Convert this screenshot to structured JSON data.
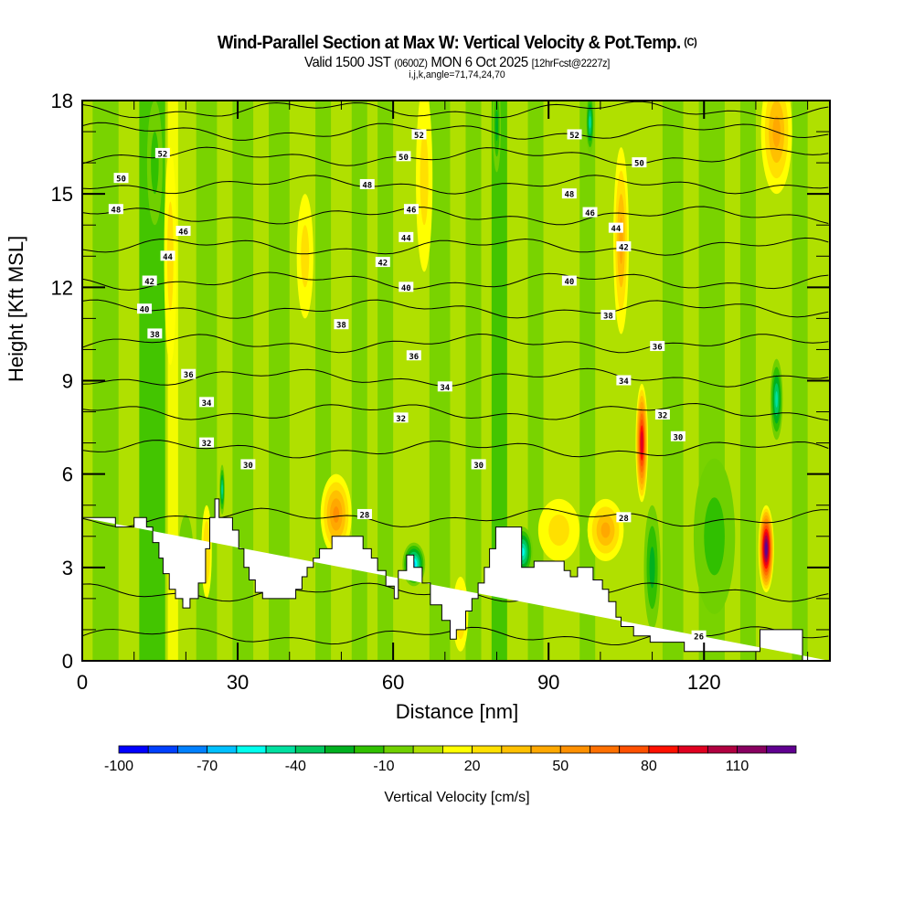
{
  "header": {
    "title": "Wind-Parallel Section at Max W: Vertical Velocity & Pot.Temp.",
    "copyright": "(C)",
    "valid_prefix": "Valid 1500 JST",
    "valid_utc": "(0600Z)",
    "valid_date": "MON 6 Oct 2025",
    "forecast": "[12hrFcst@2227z]",
    "indices": "i,j,k,angle=71,74,24,70"
  },
  "chart_data": {
    "type": "heatmap",
    "title": "Wind-Parallel Section at Max W: Vertical Velocity & Pot.Temp.",
    "xlabel": "Distance [nm]",
    "ylabel": "Height [Kft MSL]",
    "xlim": [
      0,
      144.3
    ],
    "ylim": [
      0,
      18
    ],
    "xticks": [
      0,
      30,
      60,
      90,
      120
    ],
    "xtick_labels": [
      "0",
      "30",
      "60",
      "90",
      "120"
    ],
    "yticks": [
      0,
      3,
      6,
      9,
      12,
      15,
      18
    ],
    "ytick_labels": [
      "0",
      "3",
      "6",
      "9",
      "12",
      "15",
      "18"
    ],
    "colorbar": {
      "label": "Vertical Velocity [cm/s]",
      "tick_labels": [
        "-100",
        "-70",
        "-40",
        "-10",
        "20",
        "50",
        "80",
        "110"
      ],
      "tick_values": [
        -100,
        -70,
        -40,
        -10,
        20,
        50,
        80,
        110
      ],
      "min": -100,
      "step": 10,
      "colors": [
        "#0000ff",
        "#0040ff",
        "#0080ff",
        "#00c0ff",
        "#00ffee",
        "#00e0a0",
        "#00c860",
        "#00b020",
        "#30c000",
        "#70d000",
        "#b0e000",
        "#ffff00",
        "#ffe000",
        "#ffc000",
        "#ffa800",
        "#ff9000",
        "#ff7000",
        "#ff5000",
        "#ff1000",
        "#e00020",
        "#b00040",
        "#880060",
        "#600090"
      ]
    },
    "theta_contours": {
      "units": "K (pot. temp., labels shown)",
      "levels": [
        26,
        28,
        30,
        32,
        34,
        36,
        38,
        40,
        42,
        44,
        46,
        48,
        50,
        52
      ],
      "labels": [
        {
          "text": "52",
          "x": 15.5,
          "y": 16.3
        },
        {
          "text": "50",
          "x": 7.5,
          "y": 15.5
        },
        {
          "text": "48",
          "x": 6.5,
          "y": 14.5
        },
        {
          "text": "46",
          "x": 19.5,
          "y": 13.8
        },
        {
          "text": "44",
          "x": 16.5,
          "y": 13.0
        },
        {
          "text": "42",
          "x": 13,
          "y": 12.2
        },
        {
          "text": "40",
          "x": 12,
          "y": 11.3
        },
        {
          "text": "38",
          "x": 14,
          "y": 10.5
        },
        {
          "text": "36",
          "x": 20.5,
          "y": 9.2
        },
        {
          "text": "34",
          "x": 24,
          "y": 8.3
        },
        {
          "text": "32",
          "x": 24,
          "y": 7.0
        },
        {
          "text": "30",
          "x": 32,
          "y": 6.3
        },
        {
          "text": "52",
          "x": 65,
          "y": 16.9
        },
        {
          "text": "50",
          "x": 62,
          "y": 16.2
        },
        {
          "text": "48",
          "x": 55,
          "y": 15.3
        },
        {
          "text": "46",
          "x": 63.5,
          "y": 14.5
        },
        {
          "text": "44",
          "x": 62.5,
          "y": 13.6
        },
        {
          "text": "42",
          "x": 58,
          "y": 12.8
        },
        {
          "text": "40",
          "x": 62.5,
          "y": 12.0
        },
        {
          "text": "38",
          "x": 50,
          "y": 10.8
        },
        {
          "text": "36",
          "x": 64,
          "y": 9.8
        },
        {
          "text": "34",
          "x": 70,
          "y": 8.8
        },
        {
          "text": "32",
          "x": 61.5,
          "y": 7.8
        },
        {
          "text": "30",
          "x": 76.5,
          "y": 6.3
        },
        {
          "text": "28",
          "x": 54.5,
          "y": 4.7
        },
        {
          "text": "52",
          "x": 95,
          "y": 16.9
        },
        {
          "text": "50",
          "x": 107.5,
          "y": 16.0
        },
        {
          "text": "48",
          "x": 94,
          "y": 15.0
        },
        {
          "text": "46",
          "x": 98,
          "y": 14.4
        },
        {
          "text": "44",
          "x": 103,
          "y": 13.9
        },
        {
          "text": "42",
          "x": 104.5,
          "y": 13.3
        },
        {
          "text": "40",
          "x": 94,
          "y": 12.2
        },
        {
          "text": "38",
          "x": 101.5,
          "y": 11.1
        },
        {
          "text": "36",
          "x": 111,
          "y": 10.1
        },
        {
          "text": "34",
          "x": 104.5,
          "y": 9.0
        },
        {
          "text": "32",
          "x": 112,
          "y": 7.9
        },
        {
          "text": "30",
          "x": 115,
          "y": 7.2
        },
        {
          "text": "28",
          "x": 104.5,
          "y": 4.6
        },
        {
          "text": "26",
          "x": 119,
          "y": 0.8
        }
      ]
    },
    "terrain": {
      "x": [
        0,
        6.4,
        6.4,
        10,
        10,
        12.4,
        12.4,
        13.6,
        13.6,
        14.8,
        14.8,
        15.6,
        15.6,
        16.8,
        16.8,
        18,
        18,
        19.4,
        19.4,
        20.8,
        20.8,
        22.4,
        22.4,
        23.8,
        23.8,
        24.6,
        24.6,
        25.6,
        25.6,
        26.4,
        26.4,
        29,
        29,
        30.2,
        30.2,
        31.2,
        31.2,
        32.2,
        32.2,
        33.4,
        33.4,
        34.8,
        34.8,
        41.2,
        41.2,
        42.4,
        42.4,
        43.4,
        43.4,
        44.6,
        44.6,
        45.8,
        45.8,
        47,
        47,
        48.2,
        48.2,
        54.2,
        54.2,
        55.8,
        55.8,
        57,
        57,
        58.6,
        58.6,
        60.2,
        60.2,
        61,
        61,
        62.6,
        62.6,
        64,
        64,
        65.6,
        65.6,
        67.2,
        67.2,
        69.4,
        69.4,
        71,
        71,
        72.2,
        72.2,
        74,
        74,
        75.2,
        75.2,
        76.4,
        76.4,
        77.6,
        77.6,
        78.6,
        78.6,
        79.8,
        79.8,
        81,
        81,
        84.8,
        84.8,
        87.2,
        87.2,
        93,
        93,
        94.2,
        94.2,
        95.6,
        95.6,
        98.6,
        98.6,
        100.4,
        100.4,
        101.6,
        101.6,
        103,
        103,
        104,
        104,
        106.4,
        106.4,
        109.6,
        109.6,
        116.2,
        116.2,
        121.6,
        121.6,
        130.8,
        130.8,
        134,
        134,
        139,
        139,
        144.3,
        144.3,
        0
      ],
      "y": [
        4.6,
        4.6,
        4.3,
        4.3,
        4.6,
        4.6,
        4.3,
        4.3,
        3.8,
        3.8,
        3.3,
        3.3,
        2.8,
        2.8,
        2.3,
        2.3,
        2.0,
        2.0,
        1.7,
        1.7,
        2.0,
        2.0,
        2.5,
        2.5,
        3.6,
        3.6,
        4.6,
        4.6,
        5.2,
        5.2,
        4.6,
        4.6,
        4.2,
        4.2,
        3.6,
        3.6,
        3.0,
        3.0,
        2.6,
        2.6,
        2.2,
        2.2,
        2.0,
        2.0,
        2.3,
        2.3,
        2.7,
        2.7,
        3.0,
        3.0,
        3.3,
        3.3,
        3.6,
        3.6,
        3.6,
        3.6,
        4.0,
        4.0,
        3.6,
        3.6,
        3.3,
        3.3,
        2.9,
        2.9,
        2.4,
        2.4,
        2.0,
        2.0,
        2.9,
        2.9,
        3.4,
        3.4,
        3.0,
        3.0,
        2.5,
        2.5,
        1.8,
        1.8,
        1.3,
        1.3,
        0.7,
        0.7,
        1.0,
        1.0,
        1.6,
        1.6,
        2.0,
        2.0,
        2.5,
        2.5,
        3.0,
        3.0,
        3.6,
        3.6,
        4.3,
        4.3,
        4.3,
        4.3,
        3.0,
        3.0,
        3.2,
        3.2,
        2.9,
        2.9,
        2.7,
        2.7,
        3.0,
        3.0,
        2.6,
        2.6,
        2.3,
        2.3,
        1.9,
        1.9,
        1.4,
        1.4,
        1.1,
        1.1,
        0.8,
        0.8,
        0.6,
        0.6,
        0.3,
        0.3,
        0.3,
        0.3,
        1.0,
        1.0,
        1.0,
        1.0,
        0,
        0
      ]
    },
    "w_features": [
      {
        "x": 108,
        "y": 7.0,
        "sx": 1.2,
        "sy": 1.9,
        "w": 95
      },
      {
        "x": 132,
        "y": 3.6,
        "sx": 1.5,
        "sy": 1.4,
        "w": 125
      },
      {
        "x": 49,
        "y": 4.7,
        "sx": 3.0,
        "sy": 1.3,
        "w": 50
      },
      {
        "x": 101,
        "y": 4.2,
        "sx": 3.5,
        "sy": 1.0,
        "w": 40
      },
      {
        "x": 134,
        "y": 17.0,
        "sx": 3.0,
        "sy": 2.0,
        "w": 40
      },
      {
        "x": 104,
        "y": 13.5,
        "sx": 1.5,
        "sy": 3.0,
        "w": 40
      },
      {
        "x": 17,
        "y": 13.0,
        "sx": 1.2,
        "sy": 3.5,
        "w": 20
      },
      {
        "x": 43,
        "y": 13.0,
        "sx": 1.6,
        "sy": 2.0,
        "w": 20
      },
      {
        "x": 66,
        "y": 15.5,
        "sx": 1.6,
        "sy": 3.0,
        "w": 20
      },
      {
        "x": 73,
        "y": 1.5,
        "sx": 1.5,
        "sy": 1.2,
        "w": 30
      },
      {
        "x": 92,
        "y": 4.2,
        "sx": 4.0,
        "sy": 1.0,
        "w": 20
      },
      {
        "x": 24,
        "y": 3.5,
        "sx": 1.0,
        "sy": 1.5,
        "w": 25
      },
      {
        "x": 64,
        "y": 3.1,
        "sx": 2.2,
        "sy": 0.7,
        "w": -70
      },
      {
        "x": 85,
        "y": 3.5,
        "sx": 2.0,
        "sy": 0.8,
        "w": -60
      },
      {
        "x": 134,
        "y": 8.4,
        "sx": 1.2,
        "sy": 1.3,
        "w": -45
      },
      {
        "x": 98,
        "y": 17.3,
        "sx": 0.8,
        "sy": 1.0,
        "w": -45
      },
      {
        "x": 80,
        "y": 17.2,
        "sx": 0.8,
        "sy": 1.5,
        "w": -30
      },
      {
        "x": 27,
        "y": 5.5,
        "sx": 0.5,
        "sy": 0.8,
        "w": -45
      },
      {
        "x": 110,
        "y": 3.0,
        "sx": 1.6,
        "sy": 2.0,
        "w": -30
      },
      {
        "x": 122,
        "y": 4.0,
        "sx": 4.0,
        "sy": 2.5,
        "w": -20
      },
      {
        "x": 20,
        "y": 3.2,
        "sx": 1.5,
        "sy": 1.5,
        "w": -15
      },
      {
        "x": 14,
        "y": 16.0,
        "sx": 1.5,
        "sy": 2.0,
        "w": -15
      }
    ]
  }
}
